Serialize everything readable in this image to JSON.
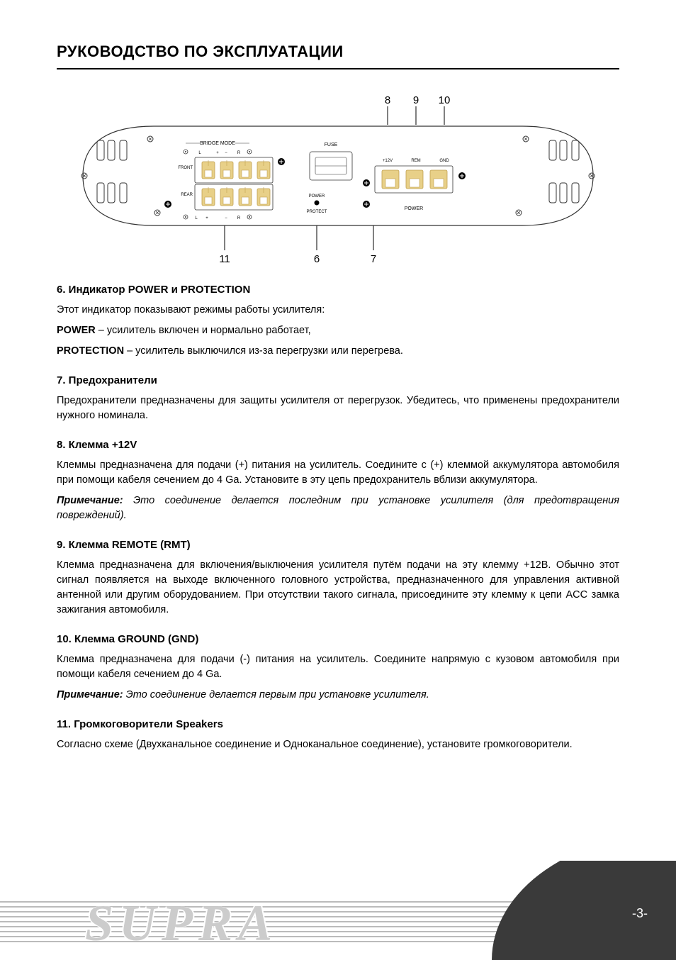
{
  "title": "РУКОВОДСТВО ПО ЭКСПЛУАТАЦИИ",
  "diagram": {
    "callouts_top": [
      "8",
      "9",
      "10"
    ],
    "callouts_bottom": [
      "11",
      "6",
      "7"
    ],
    "labels": {
      "bridge_mode": "BRIDGE MODE",
      "front": "FRONT",
      "rear": "REAR",
      "fuse": "FUSE",
      "power": "POWER",
      "protect": "PROTECT",
      "plus12v": "+12V",
      "rem": "REM",
      "gnd": "GND",
      "power_block": "POWER",
      "L": "L",
      "R": "R",
      "plus": "+",
      "minus": "−"
    },
    "colors": {
      "outline": "#333333",
      "connector_fill": "#e8d088",
      "connector_stroke": "#c0a050",
      "screw": "#333333"
    }
  },
  "sections": [
    {
      "head": "6. Индикатор POWER и PROTECTION",
      "paras": [
        {
          "plain": "Этот индикатор показывают режимы работы усилителя:"
        },
        {
          "bold_prefix": "POWER",
          "rest": " – усилитель включен и нормально работает,"
        },
        {
          "bold_prefix": "PROTECTION",
          "rest": " – усилитель выключился из-за перегрузки или перегрева."
        }
      ]
    },
    {
      "head": "7. Предохранители",
      "paras": [
        {
          "plain": "Предохранители предназначены для защиты усилителя от перегрузок. Убедитесь, что применены предохранители нужного номинала."
        }
      ]
    },
    {
      "head": "8. Клемма +12V",
      "paras": [
        {
          "plain": "Клеммы предназначена для подачи (+) питания на усилитель. Соедините с (+) клеммой аккумулятора автомобиля при помощи кабеля сечением до 4 Ga. Установите в эту цепь предохранитель вблизи аккумулятора."
        },
        {
          "note_label": "Примечание:",
          "note_rest": " Это соединение делается последним при установке усилителя (для предотвращения повреждений)."
        }
      ]
    },
    {
      "head": "9. Клемма REMOTE (RMT)",
      "paras": [
        {
          "plain": "Клемма предназначена для включения/выключения усилителя путём подачи на эту клемму +12В. Обычно этот сигнал появляется на выходе включенного головного устройства, предназначенного для управления активной антенной или другим оборудованием. При отсутствии такого сигнала, присоедините эту клемму к цепи ACC замка зажигания автомобиля."
        }
      ]
    },
    {
      "head": "10. Клемма GROUND (GND)",
      "paras": [
        {
          "plain": "Клемма предназначена для подачи (-) питания на усилитель. Соедините напрямую с кузовом автомобиля при помощи кабеля сечением до 4 Ga."
        },
        {
          "note_label": "Примечание:",
          "note_rest": " Это соединение делается первым при установке усилителя."
        }
      ]
    },
    {
      "head": "11. Громкоговорители Speakers",
      "paras": [
        {
          "plain": "Согласно схеме (Двухканальное соединение и Одноканальное соединение), установите громкоговорители."
        }
      ]
    }
  ],
  "footer": {
    "brand": "SUPRA",
    "page_num": "-3-"
  }
}
